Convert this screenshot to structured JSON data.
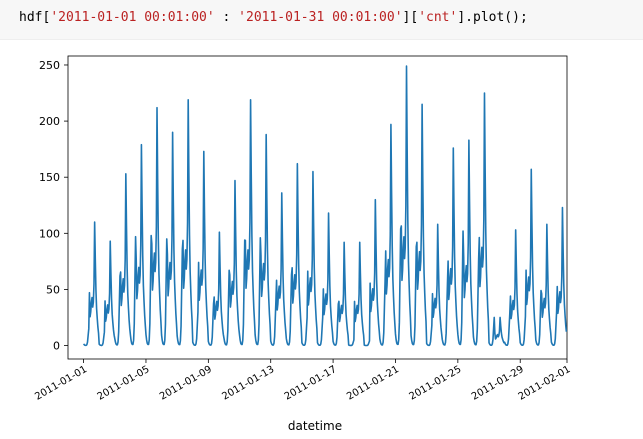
{
  "code_cell": {
    "prefix": "hdf[",
    "start": "'2011-01-01 00:01:00'",
    "separator": " : ",
    "end": "'2011-01-31 00:01:00'",
    "middle": "][",
    "column": "'cnt'",
    "suffix": "].plot();"
  },
  "chart_data": {
    "type": "line",
    "title": "",
    "xlabel": "datetime",
    "ylabel": "",
    "ylim": [
      -12,
      258
    ],
    "xlim": [
      "2010-12-31",
      "2011-02-01"
    ],
    "grid": false,
    "line_color": "#1f77b4",
    "x_ticks": [
      "2011-01-01",
      "2011-01-05",
      "2011-01-09",
      "2011-01-13",
      "2011-01-17",
      "2011-01-21",
      "2011-01-25",
      "2011-01-29",
      "2011-02-01"
    ],
    "y_ticks": [
      0,
      50,
      100,
      150,
      200,
      250
    ],
    "series": [
      {
        "daily": [
          {
            "date": "2011-01-01",
            "morning": 15,
            "evening": 110
          },
          {
            "date": "2011-01-02",
            "morning": 12,
            "evening": 93
          },
          {
            "date": "2011-01-03",
            "morning": 62,
            "evening": 153
          },
          {
            "date": "2011-01-04",
            "morning": 97,
            "evening": 179
          },
          {
            "date": "2011-01-05",
            "morning": 98,
            "evening": 212
          },
          {
            "date": "2011-01-06",
            "morning": 95,
            "evening": 190
          },
          {
            "date": "2011-01-07",
            "morning": 86,
            "evening": 219
          },
          {
            "date": "2011-01-08",
            "morning": 30,
            "evening": 173
          },
          {
            "date": "2011-01-09",
            "morning": 37,
            "evening": 101
          },
          {
            "date": "2011-01-10",
            "morning": 67,
            "evening": 147
          },
          {
            "date": "2011-01-11",
            "morning": 94,
            "evening": 219
          },
          {
            "date": "2011-01-12",
            "morning": 96,
            "evening": 188
          },
          {
            "date": "2011-01-13",
            "morning": 40,
            "evening": 136
          },
          {
            "date": "2011-01-14",
            "morning": 63,
            "evening": 162
          },
          {
            "date": "2011-01-15",
            "morning": 25,
            "evening": 155
          },
          {
            "date": "2011-01-16",
            "morning": 25,
            "evening": 118
          },
          {
            "date": "2011-01-17",
            "morning": 37,
            "evening": 92
          },
          {
            "date": "2011-01-18",
            "morning": 5,
            "evening": 92
          },
          {
            "date": "2011-01-19",
            "morning": 4,
            "evening": 130
          },
          {
            "date": "2011-01-20",
            "morning": 57,
            "evening": 197
          },
          {
            "date": "2011-01-21",
            "morning": 104,
            "evening": 249
          },
          {
            "date": "2011-01-22",
            "morning": 88,
            "evening": 215
          },
          {
            "date": "2011-01-23",
            "morning": 18,
            "evening": 108
          },
          {
            "date": "2011-01-24",
            "morning": 55,
            "evening": 176
          },
          {
            "date": "2011-01-25",
            "morning": 102,
            "evening": 183
          },
          {
            "date": "2011-01-26",
            "morning": 77,
            "evening": 225
          },
          {
            "date": "2011-01-27",
            "morning": 25,
            "evening": 25
          },
          {
            "date": "2011-01-28",
            "morning": 29,
            "evening": 103
          },
          {
            "date": "2011-01-29",
            "morning": 26,
            "evening": 157
          },
          {
            "date": "2011-01-30",
            "morning": 49,
            "evening": 108
          },
          {
            "date": "2011-01-31",
            "morning": 30,
            "evening": 123
          }
        ]
      }
    ]
  }
}
